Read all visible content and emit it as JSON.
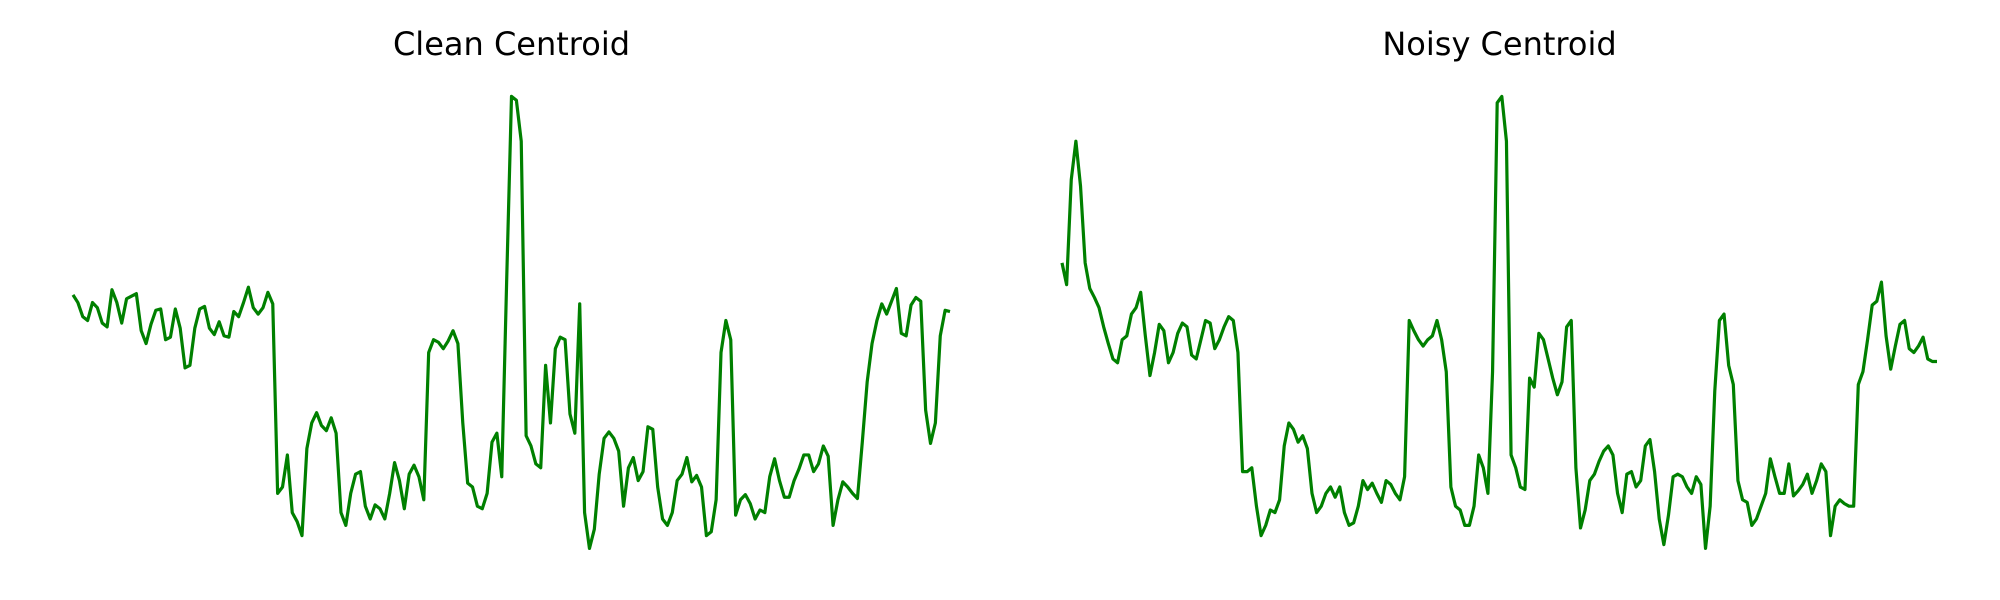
{
  "chart_data": [
    {
      "type": "line",
      "title": "Clean Centroid",
      "color": "#008000",
      "ylim": [
        0,
        360
      ],
      "values": [
        200,
        194,
        183,
        180,
        194,
        190,
        178,
        175,
        204,
        194,
        178,
        197,
        199,
        201,
        172,
        162,
        177,
        188,
        189,
        165,
        167,
        189,
        174,
        143,
        145,
        174,
        189,
        191,
        174,
        169,
        179,
        168,
        167,
        187,
        183,
        194,
        206,
        190,
        185,
        190,
        202,
        193,
        45,
        50,
        75,
        30,
        23,
        12,
        80,
        100,
        108,
        98,
        94,
        104,
        92,
        30,
        20,
        45,
        60,
        62,
        35,
        25,
        36,
        33,
        25,
        45,
        69,
        55,
        33,
        60,
        67,
        58,
        40,
        155,
        165,
        163,
        158,
        164,
        172,
        162,
        100,
        53,
        50,
        35,
        33,
        45,
        85,
        92,
        58,
        210,
        355,
        352,
        320,
        90,
        82,
        68,
        65,
        145,
        100,
        158,
        167,
        165,
        107,
        92,
        193,
        30,
        2,
        17,
        60,
        88,
        93,
        88,
        78,
        35,
        65,
        73,
        55,
        62,
        97,
        95,
        50,
        25,
        20,
        30,
        55,
        60,
        73,
        54,
        59,
        50,
        12,
        15,
        40,
        155,
        180,
        165,
        28,
        40,
        44,
        37,
        25,
        32,
        30,
        58,
        72,
        55,
        42,
        42,
        55,
        64,
        75,
        75,
        62,
        68,
        82,
        74,
        20,
        40,
        54,
        50,
        45,
        41,
        85,
        132,
        162,
        180,
        193,
        185,
        195,
        205,
        170,
        168,
        192,
        198,
        195,
        110,
        84,
        100,
        168,
        188,
        187
      ]
    },
    {
      "type": "line",
      "title": "Noisy Centroid",
      "color": "#008000",
      "ylim": [
        0,
        360
      ],
      "values": [
        225,
        208,
        290,
        320,
        285,
        225,
        205,
        198,
        190,
        175,
        162,
        150,
        147,
        165,
        168,
        185,
        190,
        202,
        168,
        137,
        155,
        177,
        172,
        147,
        155,
        170,
        178,
        175,
        153,
        150,
        165,
        180,
        178,
        158,
        165,
        175,
        183,
        180,
        155,
        62,
        62,
        65,
        35,
        12,
        20,
        32,
        30,
        40,
        82,
        100,
        95,
        85,
        90,
        80,
        45,
        30,
        35,
        45,
        50,
        42,
        50,
        30,
        20,
        22,
        35,
        55,
        48,
        53,
        45,
        38,
        55,
        52,
        45,
        40,
        58,
        180,
        172,
        165,
        160,
        165,
        168,
        180,
        165,
        140,
        50,
        35,
        32,
        20,
        20,
        35,
        75,
        65,
        45,
        140,
        350,
        355,
        320,
        75,
        65,
        50,
        48,
        135,
        128,
        170,
        165,
        150,
        135,
        122,
        132,
        175,
        180,
        65,
        18,
        32,
        55,
        60,
        70,
        78,
        82,
        75,
        45,
        30,
        60,
        62,
        50,
        55,
        82,
        87,
        62,
        25,
        5,
        28,
        58,
        60,
        58,
        50,
        45,
        58,
        52,
        2,
        35,
        125,
        180,
        185,
        145,
        130,
        55,
        40,
        38,
        20,
        25,
        35,
        45,
        72,
        58,
        45,
        45,
        68,
        43,
        47,
        52,
        60,
        45,
        55,
        68,
        62,
        12,
        35,
        40,
        37,
        35,
        35,
        130,
        140,
        165,
        192,
        195,
        210,
        168,
        142,
        160,
        177,
        180,
        158,
        155,
        160,
        167,
        150,
        148,
        148
      ]
    }
  ]
}
